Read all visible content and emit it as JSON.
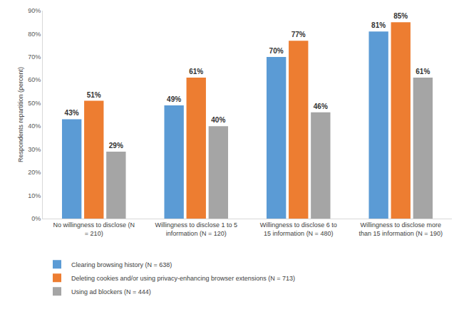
{
  "chart_data": {
    "type": "bar",
    "y_label": "Respondents repartition (percent)",
    "categories": [
      "No willingness to disclose (N = 210)",
      "Willingness to disclose 1 to 5 information (N = 120)",
      "Willingness to disclose 6 to 15 information (N = 480)",
      "Willingness to disclose more than 15 information (N = 190)"
    ],
    "series": [
      {
        "name": "Clearing browsing history (N = 638)",
        "color": "#5B9BD5",
        "values": [
          43,
          49,
          70,
          81
        ],
        "value_labels": [
          "43%",
          "49%",
          "70%",
          "81%"
        ]
      },
      {
        "name": "Deleting cookies and/or using privacy-enhancing browser extensions (N = 713)",
        "color": "#ED7D31",
        "values": [
          51,
          61,
          77,
          85
        ],
        "value_labels": [
          "51%",
          "61%",
          "77%",
          "85%"
        ]
      },
      {
        "name": "Using ad blockers (N = 444)",
        "color": "#A5A5A5",
        "values": [
          29,
          40,
          46,
          61
        ],
        "value_labels": [
          "29%",
          "40%",
          "46%",
          "61%"
        ]
      }
    ],
    "ylim": [
      0,
      90
    ],
    "yticks": [
      {
        "value": 0,
        "label": "0%"
      },
      {
        "value": 10,
        "label": "10%"
      },
      {
        "value": 20,
        "label": "20%"
      },
      {
        "value": 30,
        "label": "30%"
      },
      {
        "value": 40,
        "label": "40%"
      },
      {
        "value": 50,
        "label": "50%"
      },
      {
        "value": 60,
        "label": "60%"
      },
      {
        "value": 70,
        "label": "70%"
      },
      {
        "value": 80,
        "label": "80%"
      },
      {
        "value": 90,
        "label": "90%"
      }
    ],
    "grid": false,
    "legend": "bottom",
    "data_labels": true
  }
}
